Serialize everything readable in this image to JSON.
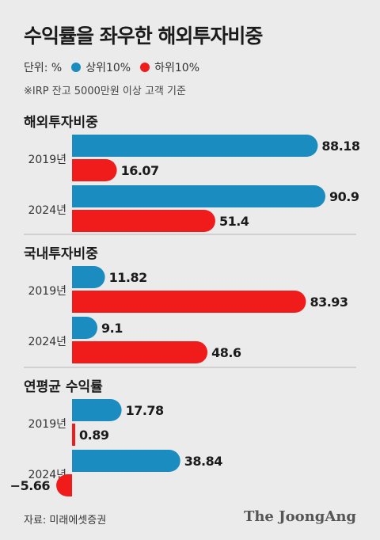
{
  "header": {
    "title": "수익률을 좌우한 해외투자비중",
    "unit_label": "단위: %",
    "note": "※IRP 잔고 5000만원 이상 고객 기준"
  },
  "footer": {
    "source": "자료: 미래에셋증권",
    "logo": "The JoongAng"
  },
  "colors": {
    "top10": "#1a8cbf",
    "bottom10": "#f01c1c",
    "divider": "#b5b5b5",
    "background": "#ebebeb"
  },
  "chart_data": {
    "type": "bar",
    "orientation": "horizontal",
    "legend": [
      "상위10%",
      "하위10%"
    ],
    "panels": [
      {
        "name": "해외투자비중",
        "categories": [
          "2019년",
          "2024년"
        ],
        "series": [
          {
            "name": "상위10%",
            "values": [
              88.18,
              90.9
            ]
          },
          {
            "name": "하위10%",
            "values": [
              16.07,
              51.4
            ]
          }
        ],
        "value_labels": [
          [
            "88.18",
            "16.07"
          ],
          [
            "90.9",
            "51.4"
          ]
        ]
      },
      {
        "name": "국내투자비중",
        "categories": [
          "2019년",
          "2024년"
        ],
        "series": [
          {
            "name": "상위10%",
            "values": [
              11.82,
              9.1
            ]
          },
          {
            "name": "하위10%",
            "values": [
              83.93,
              48.6
            ]
          }
        ],
        "value_labels": [
          [
            "11.82",
            "83.93"
          ],
          [
            "9.1",
            "48.6"
          ]
        ]
      },
      {
        "name": "연평균 수익률",
        "categories": [
          "2019년",
          "2024년"
        ],
        "series": [
          {
            "name": "상위10%",
            "values": [
              17.78,
              38.84
            ]
          },
          {
            "name": "하위10%",
            "values": [
              0.89,
              -5.66
            ]
          }
        ],
        "value_labels": [
          [
            "17.78",
            "0.89"
          ],
          [
            "38.84",
            "−5.66"
          ]
        ]
      }
    ]
  }
}
